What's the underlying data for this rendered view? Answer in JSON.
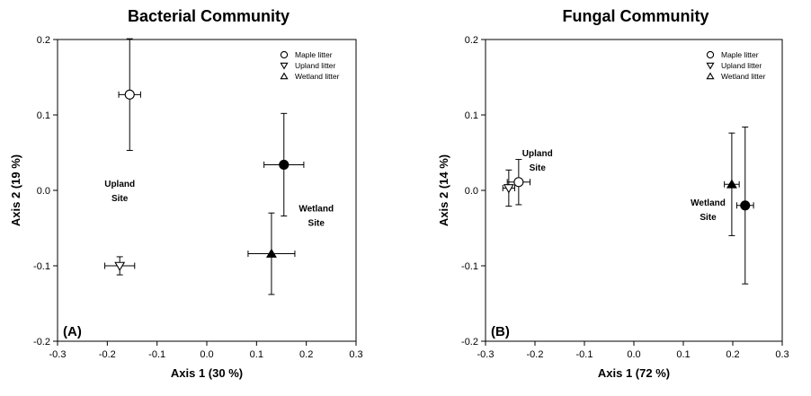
{
  "chart_data": [
    {
      "type": "scatter",
      "title": "Bacterial Community",
      "xlabel": "Axis 1 (30 %)",
      "ylabel": "Axis 2 (19 %)",
      "panel_label": "(A)",
      "xlim": [
        -0.3,
        0.3
      ],
      "ylim": [
        -0.2,
        0.2
      ],
      "xticks": [
        "-0.3",
        "-0.2",
        "-0.1",
        "0.0",
        "0.1",
        "0.2",
        "0.3"
      ],
      "yticks": [
        "-0.2",
        "-0.1",
        "0.0",
        "0.1",
        "0.2"
      ],
      "legend": [
        {
          "label": "Maple litter",
          "marker": "circle"
        },
        {
          "label": "Upland litter",
          "marker": "triangle-down"
        },
        {
          "label": "Wetland litter",
          "marker": "triangle-up"
        }
      ],
      "annotations": [
        {
          "lines": [
            "Upland",
            "Site"
          ],
          "x": -0.175,
          "y": 0.005
        },
        {
          "lines": [
            "Wetland",
            "Site"
          ],
          "x": 0.22,
          "y": -0.028
        }
      ],
      "points": [
        {
          "series": "Maple litter",
          "site": "Upland",
          "marker": "circle",
          "fill": "open",
          "x": -0.155,
          "y": 0.127,
          "xerr": 0.022,
          "yerr": 0.074
        },
        {
          "series": "Upland litter",
          "site": "Upland",
          "marker": "triangle-down",
          "fill": "open",
          "x": -0.175,
          "y": -0.1,
          "xerr": 0.03,
          "yerr": 0.012
        },
        {
          "series": "Maple litter",
          "site": "Wetland",
          "marker": "circle",
          "fill": "filled",
          "x": 0.155,
          "y": 0.034,
          "xerr": 0.04,
          "yerr": 0.068
        },
        {
          "series": "Wetland litter",
          "site": "Wetland",
          "marker": "triangle-up",
          "fill": "filled",
          "x": 0.13,
          "y": -0.084,
          "xerr": 0.047,
          "yerr": 0.054
        }
      ]
    },
    {
      "type": "scatter",
      "title": "Fungal Community",
      "xlabel": "Axis 1 (72 %)",
      "ylabel": "Axis 2 (14 %)",
      "panel_label": "(B)",
      "xlim": [
        -0.3,
        0.3
      ],
      "ylim": [
        -0.2,
        0.2
      ],
      "xticks": [
        "-0.3",
        "-0.2",
        "-0.1",
        "0.0",
        "0.1",
        "0.2",
        "0.3"
      ],
      "yticks": [
        "-0.2",
        "-0.1",
        "0.0",
        "0.1",
        "0.2"
      ],
      "legend": [
        {
          "label": "Maple litter",
          "marker": "circle"
        },
        {
          "label": "Upland litter",
          "marker": "triangle-down"
        },
        {
          "label": "Wetland litter",
          "marker": "triangle-up"
        }
      ],
      "annotations": [
        {
          "lines": [
            "Upland",
            "Site"
          ],
          "x": -0.195,
          "y": 0.045
        },
        {
          "lines": [
            "Wetland",
            "Site"
          ],
          "x": 0.15,
          "y": -0.02
        }
      ],
      "points": [
        {
          "series": "Maple litter",
          "site": "Upland",
          "marker": "circle",
          "fill": "open",
          "x": -0.233,
          "y": 0.011,
          "xerr": 0.023,
          "yerr": 0.03
        },
        {
          "series": "Upland litter",
          "site": "Upland",
          "marker": "triangle-down",
          "fill": "open",
          "x": -0.253,
          "y": 0.003,
          "xerr": 0.012,
          "yerr": 0.024
        },
        {
          "series": "Wetland litter",
          "site": "Wetland",
          "marker": "triangle-up",
          "fill": "filled",
          "x": 0.198,
          "y": 0.008,
          "xerr": 0.015,
          "yerr": 0.068
        },
        {
          "series": "Maple litter",
          "site": "Wetland",
          "marker": "circle",
          "fill": "filled",
          "x": 0.225,
          "y": -0.02,
          "xerr": 0.017,
          "yerr": 0.104
        }
      ]
    }
  ]
}
